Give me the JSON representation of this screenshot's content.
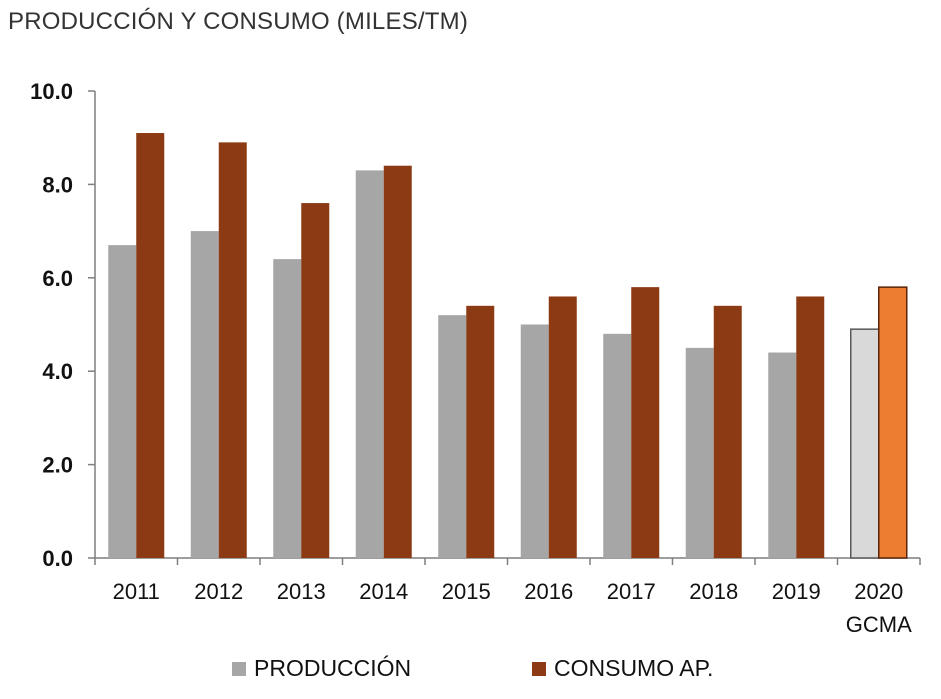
{
  "chart_data": {
    "type": "bar",
    "title": "PRODUCCIÓN Y CONSUMO (MILES/TM)",
    "categories": [
      "2011",
      "2012",
      "2013",
      "2014",
      "2015",
      "2016",
      "2017",
      "2018",
      "2019",
      "2020"
    ],
    "category_sublabels": [
      "",
      "",
      "",
      "",
      "",
      "",
      "",
      "",
      "",
      "GCMA"
    ],
    "series": [
      {
        "name": "PRODUCCIÓN",
        "color": "#a6a6a6",
        "highlight_color": "#d9d9d9",
        "values": [
          6.7,
          7.0,
          6.4,
          8.3,
          5.2,
          5.0,
          4.8,
          4.5,
          4.4,
          4.9
        ]
      },
      {
        "name": "CONSUMO AP.",
        "color": "#8b3a14",
        "highlight_color": "#ed7d31",
        "values": [
          9.1,
          8.9,
          7.6,
          8.4,
          5.4,
          5.6,
          5.8,
          5.4,
          5.6,
          5.8
        ]
      }
    ],
    "highlight_category": "2020",
    "ylim": [
      0,
      10
    ],
    "yticks": [
      "0.0",
      "2.0",
      "4.0",
      "6.0",
      "8.0",
      "10.0"
    ],
    "xlabel": "",
    "ylabel": "",
    "grid": false,
    "legend": "bottom"
  }
}
